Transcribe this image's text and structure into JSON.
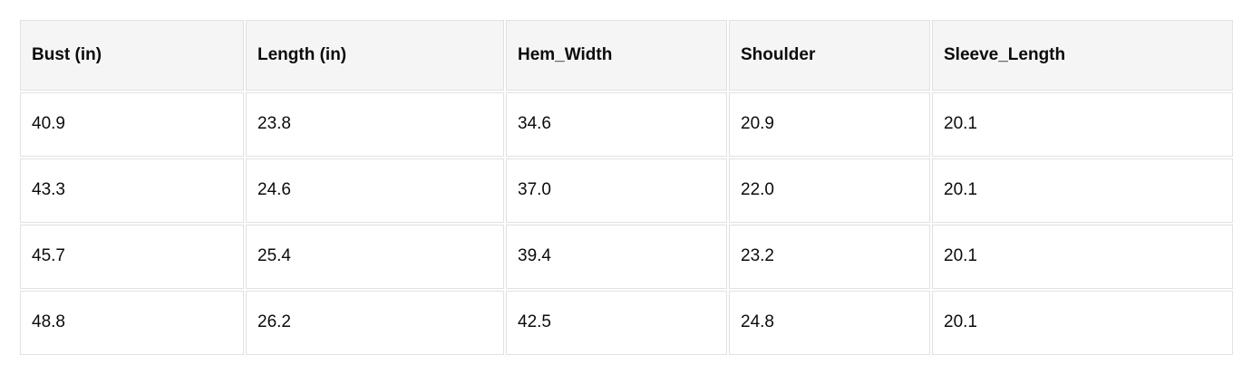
{
  "table": {
    "columns": [
      "Bust (in)",
      "Length (in)",
      "Hem_Width",
      "Shoulder",
      "Sleeve_Length"
    ],
    "rows": [
      [
        "40.9",
        "23.8",
        "34.6",
        "20.9",
        "20.1"
      ],
      [
        "43.3",
        "24.6",
        "37.0",
        "22.0",
        "20.1"
      ],
      [
        "45.7",
        "25.4",
        "39.4",
        "23.2",
        "20.1"
      ],
      [
        "48.8",
        "26.2",
        "42.5",
        "24.8",
        "20.1"
      ]
    ]
  },
  "chart_data": {
    "type": "table",
    "title": "",
    "columns": [
      "Bust (in)",
      "Length (in)",
      "Hem_Width",
      "Shoulder",
      "Sleeve_Length"
    ],
    "rows": [
      [
        40.9,
        23.8,
        34.6,
        20.9,
        20.1
      ],
      [
        43.3,
        24.6,
        37.0,
        22.0,
        20.1
      ],
      [
        45.7,
        25.4,
        39.4,
        23.2,
        20.1
      ],
      [
        48.8,
        26.2,
        42.5,
        24.8,
        20.1
      ]
    ],
    "layout_hints": {
      "header_background": "#f5f5f5",
      "cell_background": "#ffffff",
      "border_color": "#e1e1e1",
      "text_color": "#0c0c0c",
      "grid": true
    }
  }
}
